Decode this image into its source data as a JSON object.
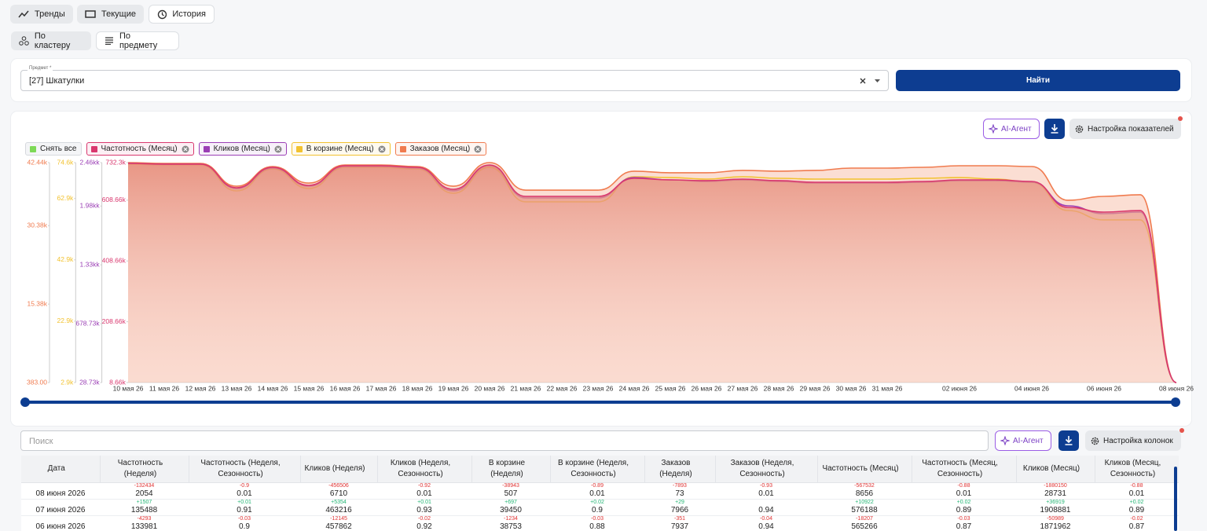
{
  "tabs": [
    "Тренды",
    "Текущие",
    "История"
  ],
  "modes": [
    "По кластеру",
    "По предмету"
  ],
  "subject": {
    "label": "Предмет *",
    "value": "[27] Шкатулки"
  },
  "search_button": "Найти",
  "chart_toolbar": {
    "ai": "AI-Агент",
    "settings": "Настройка показателей"
  },
  "legend_clear": "Снять все",
  "chart_data": {
    "type": "area",
    "categories": [
      "10 мая 26",
      "11 мая 26",
      "12 мая 26",
      "13 мая 26",
      "14 мая 26",
      "15 мая 26",
      "16 мая 26",
      "17 мая 26",
      "18 мая 26",
      "19 мая 26",
      "20 мая 26",
      "21 мая 26",
      "22 мая 26",
      "23 мая 26",
      "24 мая 26",
      "25 мая 26",
      "26 мая 26",
      "27 мая 26",
      "28 мая 26",
      "29 мая 26",
      "30 мая 26",
      "31 мая 26",
      null,
      "02 июня 26",
      null,
      "04 июня 26",
      null,
      "06 июня 26",
      null,
      "08 июня 26"
    ],
    "series": [
      {
        "name": "Частотность (Месяц)",
        "color": "#d9376e",
        "values": [
          729730,
          727180,
          727180,
          649610,
          716810,
          657360,
          721970,
          721970,
          716810,
          644450,
          724560,
          621180,
          621180,
          621180,
          680620,
          675450,
          672910,
          678040,
          672910,
          667710,
          667710,
          667710,
          670280,
          675450,
          675450,
          670280,
          584990,
          569490,
          574620,
          8660
        ],
        "ylim": [
          8660,
          732310
        ],
        "yticks": [
          {
            "value": 8660,
            "label": "8.66k"
          },
          {
            "value": 208660,
            "label": "208.66k"
          },
          {
            "value": 408660,
            "label": "408.66k"
          },
          {
            "value": 608660,
            "label": "608.66k"
          },
          {
            "value": 732310,
            "label": "732.3k"
          }
        ]
      },
      {
        "name": "Кликов (Месяц)",
        "color": "#9b3fb5",
        "values": [
          2451230,
          2442730,
          2442730,
          2173190,
          2399220,
          2199510,
          2416660,
          2416660,
          2399220,
          2147620,
          2425270,
          2069260,
          2069260,
          2069260,
          2295090,
          2268970,
          2251600,
          2268970,
          2251600,
          2234230,
          2234230,
          2234230,
          2242990,
          2260360,
          2260360,
          2242990,
          1982430,
          1895600,
          1912970,
          28730
        ],
        "ylim": [
          28730,
          2460000
        ],
        "yticks": [
          {
            "value": 28730,
            "label": "28.73k"
          },
          {
            "value": 678730,
            "label": "678.73k"
          },
          {
            "value": 1330000,
            "label": "1.33kk"
          },
          {
            "value": 1980000,
            "label": "1.98kk"
          },
          {
            "value": 2460000,
            "label": "2.46kk"
          }
        ]
      },
      {
        "name": "В корзине (Месяц)",
        "color": "#f2c230",
        "values": [
          74090,
          73830,
          73830,
          65380,
          72550,
          66150,
          73060,
          73060,
          72550,
          64610,
          73060,
          61800,
          61800,
          61800,
          69990,
          69730,
          69220,
          69990,
          69480,
          69220,
          69220,
          69220,
          69480,
          69730,
          69220,
          68200,
          58980,
          55910,
          55910,
          2900
        ],
        "ylim": [
          2900,
          74600
        ],
        "yticks": [
          {
            "value": 2900,
            "label": "2.9k"
          },
          {
            "value": 22900,
            "label": "22.9k"
          },
          {
            "value": 42900,
            "label": "42.9k"
          },
          {
            "value": 62900,
            "label": "62.9k"
          },
          {
            "value": 74600,
            "label": "74.6k"
          }
        ]
      },
      {
        "name": "Заказов (Месяц)",
        "color": "#f07b4f",
        "values": [
          42440,
          42290,
          42290,
          37930,
          41690,
          38530,
          41990,
          41990,
          41690,
          37930,
          42440,
          37180,
          37180,
          37180,
          40790,
          40490,
          40490,
          40940,
          40790,
          40940,
          41390,
          41390,
          41540,
          41840,
          41840,
          41690,
          35240,
          35980,
          36290,
          383
        ],
        "ylim": [
          383,
          42440
        ],
        "yticks": [
          {
            "value": 383,
            "label": "383.00"
          },
          {
            "value": 15380,
            "label": "15.38k"
          },
          {
            "value": 30380,
            "label": "30.38k"
          },
          {
            "value": 42440,
            "label": "42.44k"
          }
        ]
      }
    ]
  },
  "table_toolbar": {
    "search_placeholder": "Поиск",
    "ai": "AI-Агент",
    "settings": "Настройка колонок"
  },
  "table": {
    "columns": [
      "Дата",
      "Частотность (Неделя)",
      "Частотность (Неделя, Сезонность)",
      "Кликов (Неделя)",
      "Кликов (Неделя, Сезонность)",
      "В корзине (Неделя)",
      "В корзине (Неделя, Сезонность)",
      "Заказов (Неделя)",
      "Заказов (Неделя, Сезонность)",
      "Частотность (Месяц)",
      "Частотность (Месяц, Сезонность)",
      "Кликов (Месяц)",
      "Кликов (Месяц, Сезонность)"
    ],
    "rows": [
      {
        "cells": [
          "08 июня 2026",
          "2054",
          "0.01",
          "6710",
          "0.01",
          "507",
          "0.01",
          "73",
          "0.01",
          "8656",
          "0.01",
          "28731",
          "0.01"
        ],
        "deltas": [
          "-132434",
          "-0.9",
          "-456506",
          "-0.92",
          "-38943",
          "-0.89",
          "-7893",
          "-0.93",
          "-567532",
          "-0.88",
          "-1880150",
          "-0.88"
        ]
      },
      {
        "cells": [
          "07 июня 2026",
          "135488",
          "0.91",
          "463216",
          "0.93",
          "39450",
          "0.9",
          "7966",
          "0.94",
          "576188",
          "0.89",
          "1908881",
          "0.89"
        ],
        "deltas": [
          "+1507",
          "+0.01",
          "+5354",
          "+0.01",
          "+697",
          "+0.02",
          "+29",
          null,
          "+10922",
          "+0.02",
          "+36919",
          "+0.02"
        ]
      },
      {
        "cells": [
          "06 июня 2026",
          "133981",
          "0.9",
          "457862",
          "0.92",
          "38753",
          "0.88",
          "7937",
          "0.94",
          "565266",
          "0.87",
          "1871962",
          "0.87"
        ],
        "deltas": [
          "-4293",
          "-0.03",
          "-12145",
          "-0.02",
          "-1234",
          "-0.03",
          "-351",
          "-0.04",
          "-18207",
          "-0.03",
          "-50989",
          "-0.02"
        ]
      }
    ]
  }
}
